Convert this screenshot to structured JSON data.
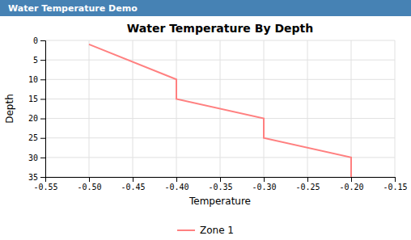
{
  "chart_data": {
    "type": "line",
    "title": "Water Temperature By Depth",
    "annotations": [
      "Water Temperature Demo"
    ],
    "x_label": "Temperature",
    "y_label": "Depth",
    "x": [
      -0.5,
      -0.4,
      -0.4,
      -0.3,
      -0.3,
      -0.2,
      -0.2
    ],
    "series": [
      {
        "name": "Zone 1",
        "color": "#FF8080",
        "values": [
          1,
          10,
          15,
          20,
          25,
          30,
          35
        ]
      }
    ],
    "xlim": [
      -0.55,
      -0.15
    ],
    "xticks": [
      -0.55,
      {
        "value": -0.5,
        "label": "-0.50"
      },
      -0.45,
      {
        "value": -0.4,
        "label": "-0.40"
      },
      -0.35,
      {
        "value": -0.3,
        "label": "-0.30"
      },
      -0.25,
      {
        "value": -0.2,
        "label": "-0.20"
      },
      -0.15
    ],
    "ylim": [
      35,
      0
    ],
    "yticks": [
      0,
      5,
      10,
      15,
      20,
      25,
      30,
      35
    ],
    "grid": true,
    "legend": "bottom"
  }
}
